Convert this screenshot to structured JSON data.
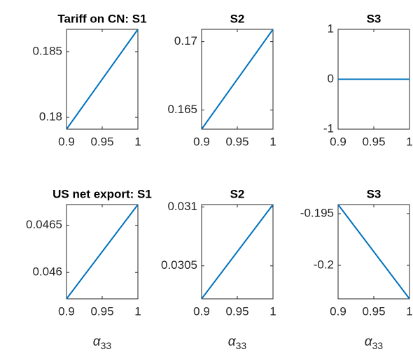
{
  "chart_data": [
    {
      "type": "line",
      "title": "Tariff on CN: S1",
      "x": [
        0.9,
        1
      ],
      "series": [
        {
          "color": "#0072bd",
          "values": [
            0.1791,
            0.1867
          ]
        }
      ],
      "xlim": [
        0.9,
        1
      ],
      "xticks": [
        0.9,
        0.95,
        1
      ],
      "ylim": [
        0.1791,
        0.1867
      ],
      "yticks": [
        0.18,
        0.185
      ]
    },
    {
      "type": "line",
      "title": "S2",
      "x": [
        0.9,
        1
      ],
      "series": [
        {
          "color": "#0072bd",
          "values": [
            0.1636,
            0.1709
          ]
        }
      ],
      "xlim": [
        0.9,
        1
      ],
      "xticks": [
        0.9,
        0.95,
        1
      ],
      "ylim": [
        0.1636,
        0.1709
      ],
      "yticks": [
        0.165,
        0.17
      ]
    },
    {
      "type": "line",
      "title": "S3",
      "x": [
        0.9,
        1
      ],
      "series": [
        {
          "color": "#0072bd",
          "values": [
            0,
            0
          ]
        }
      ],
      "xlim": [
        0.9,
        1
      ],
      "xticks": [
        0.9,
        0.95,
        1
      ],
      "ylim": [
        -1,
        1
      ],
      "yticks": [
        -1,
        0,
        1
      ]
    },
    {
      "type": "line",
      "title": "US net export: S1",
      "xlabel": "α",
      "xlabel_subscript": "33",
      "x": [
        0.9,
        1
      ],
      "series": [
        {
          "color": "#0072bd",
          "values": [
            0.04572,
            0.04672
          ]
        }
      ],
      "xlim": [
        0.9,
        1
      ],
      "xticks": [
        0.9,
        0.95,
        1
      ],
      "ylim": [
        0.04572,
        0.04672
      ],
      "yticks": [
        0.046,
        0.0465
      ]
    },
    {
      "type": "line",
      "title": "S2",
      "xlabel": "α",
      "xlabel_subscript": "33",
      "x": [
        0.9,
        1
      ],
      "series": [
        {
          "color": "#0072bd",
          "values": [
            0.03022,
            0.03102
          ]
        }
      ],
      "xlim": [
        0.9,
        1
      ],
      "xticks": [
        0.9,
        0.95,
        1
      ],
      "ylim": [
        0.03022,
        0.03102
      ],
      "yticks": [
        0.0305,
        0.031
      ]
    },
    {
      "type": "line",
      "title": "S3",
      "xlabel": "α",
      "xlabel_subscript": "33",
      "x": [
        0.9,
        1
      ],
      "series": [
        {
          "color": "#0072bd",
          "values": [
            -0.19412,
            -0.20324
          ]
        }
      ],
      "xlim": [
        0.9,
        1
      ],
      "xticks": [
        0.9,
        0.95,
        1
      ],
      "ylim": [
        -0.20324,
        -0.19412
      ],
      "yticks": [
        -0.2,
        -0.195
      ]
    }
  ]
}
